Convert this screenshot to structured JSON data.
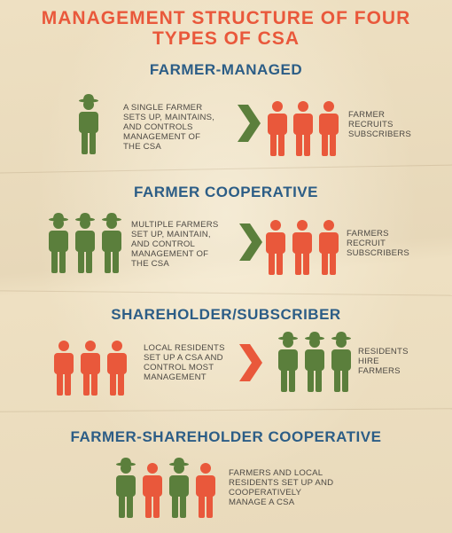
{
  "title": {
    "line1": "MANAGEMENT STRUCTURE OF FOUR",
    "line2": "TYPES OF CSA"
  },
  "colors": {
    "title": "#e9583b",
    "heading": "#2c5d86",
    "farmer": "#5b7f3c",
    "subscriber": "#e9583b",
    "text": "#4e4a44"
  },
  "sections": [
    {
      "heading": "FARMER-MANAGED",
      "left_text": [
        "A SINGLE FARMER",
        "SETS UP, MAINTAINS,",
        "AND CONTROLS",
        "MANAGEMENT OF",
        "THE CSA"
      ],
      "right_text": [
        "FARMER",
        "RECRUITS",
        "SUBSCRIBERS"
      ],
      "left_group": [
        "farmer"
      ],
      "right_group": [
        "subscriber",
        "subscriber",
        "subscriber"
      ],
      "arrow_color": "farmer"
    },
    {
      "heading": "FARMER COOPERATIVE",
      "left_text": [
        "MULTIPLE FARMERS",
        "SET UP, MAINTAIN,",
        "AND CONTROL",
        "MANAGEMENT OF",
        "THE CSA"
      ],
      "right_text": [
        "FARMERS",
        "RECRUIT",
        "SUBSCRIBERS"
      ],
      "left_group": [
        "farmer",
        "farmer",
        "farmer"
      ],
      "right_group": [
        "subscriber",
        "subscriber",
        "subscriber"
      ],
      "arrow_color": "farmer"
    },
    {
      "heading": "SHAREHOLDER/SUBSCRIBER",
      "left_text": [
        "LOCAL RESIDENTS",
        "SET UP A CSA AND",
        "CONTROL MOST",
        "MANAGEMENT"
      ],
      "right_text": [
        "RESIDENTS",
        "HIRE",
        "FARMERS"
      ],
      "left_group": [
        "subscriber",
        "subscriber",
        "subscriber"
      ],
      "right_group": [
        "farmer",
        "farmer",
        "farmer"
      ],
      "arrow_color": "subscriber"
    },
    {
      "heading": "FARMER-SHAREHOLDER COOPERATIVE",
      "text": [
        "FARMERS AND LOCAL",
        "RESIDENTS SET UP AND",
        "COOPERATIVELY",
        "MANAGE A CSA"
      ],
      "group": [
        "farmer",
        "subscriber",
        "farmer",
        "subscriber"
      ]
    }
  ]
}
